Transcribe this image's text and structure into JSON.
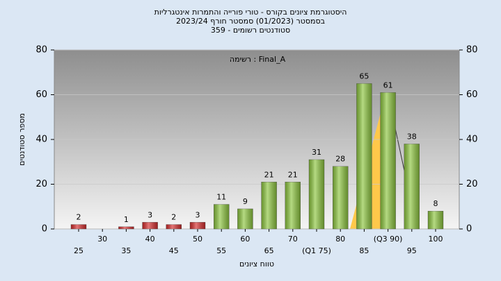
{
  "chart_data": {
    "type": "bar",
    "title_lines": [
      "היסטוגרמת ציונים בקורס - טורי פורייה והתמרות אינטגרליות",
      "בסמסטר  (01/2023)  סמסטר חורף 2023/24",
      "סטודנטים רשומים - 359"
    ],
    "annotation": "רשימה : Final_A",
    "x_label": "טווח ציונים",
    "y_label": "מספר סטודנטים",
    "categories": [
      "25",
      "30",
      "35",
      "40",
      "45",
      "50",
      "55",
      "60",
      "65",
      "70",
      "(Q1 75)",
      "80",
      "85",
      "(Q3 90)",
      "95",
      "100"
    ],
    "values": [
      2,
      null,
      1,
      3,
      2,
      3,
      11,
      9,
      21,
      21,
      31,
      28,
      65,
      61,
      38,
      8
    ],
    "colors": [
      "#d62c2c",
      "#d62c2c",
      "#d62c2c",
      "#d62c2c",
      "#d62c2c",
      "#d62c2c",
      "#8dc63f",
      "#8dc63f",
      "#8dc63f",
      "#8dc63f",
      "#8dc63f",
      "#8dc63f",
      "#8dc63f",
      "#8dc63f",
      "#8dc63f",
      "#8dc63f"
    ],
    "ylim": [
      0,
      80
    ],
    "yticks": [
      0,
      20,
      40,
      60,
      80
    ],
    "y2lim": [
      0,
      80
    ],
    "y2ticks": [
      0,
      20,
      40,
      60,
      80
    ],
    "grid": true
  }
}
